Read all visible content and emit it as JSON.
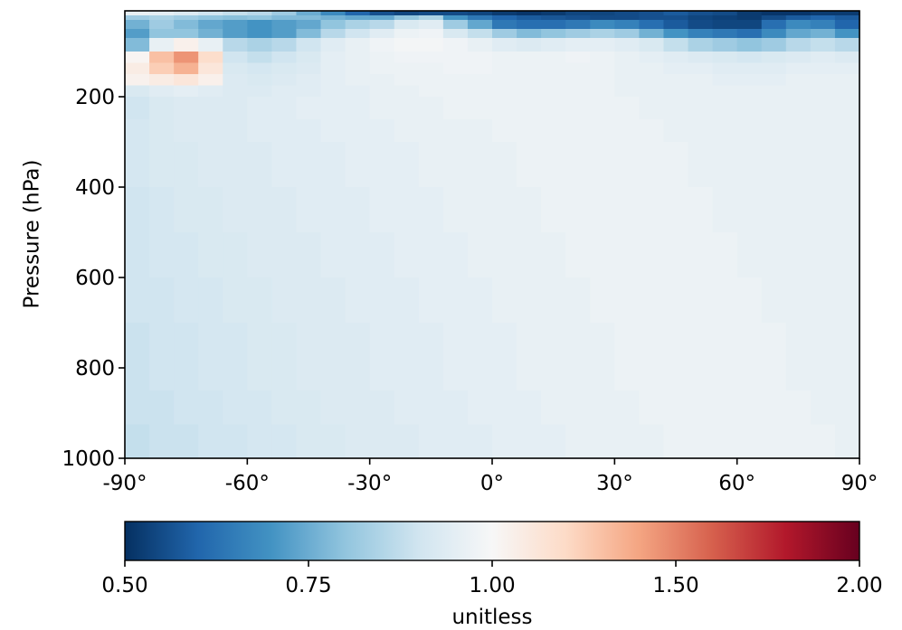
{
  "chart_data": {
    "type": "heatmap",
    "title": "",
    "xlabel": "",
    "ylabel": "Pressure (hPa)",
    "x_range": [
      -90,
      90
    ],
    "y_range": [
      1000,
      10
    ],
    "y_inverted": true,
    "x_ticks": [
      -90,
      -60,
      -30,
      0,
      30,
      60,
      90
    ],
    "x_tick_labels": [
      "-90°",
      "-60°",
      "-30°",
      "0°",
      "30°",
      "60°",
      "90°"
    ],
    "y_ticks": [
      200,
      400,
      600,
      800,
      1000
    ],
    "y_tick_labels": [
      "200",
      "400",
      "600",
      "800",
      "1000"
    ],
    "colorbar": {
      "label": "unitless",
      "colormap": "RdBu_r",
      "range": [
        0.5,
        2.0
      ],
      "ticks": [
        0.5,
        0.75,
        1.0,
        1.5,
        2.0
      ],
      "tick_labels": [
        "0.50",
        "0.75",
        "1.00",
        "1.50",
        "2.00"
      ]
    },
    "lat_edges": [
      -90,
      -84,
      -78,
      -72,
      -66,
      -60,
      -54,
      -48,
      -42,
      -36,
      -30,
      -24,
      -18,
      -12,
      -6,
      0,
      6,
      12,
      18,
      24,
      30,
      36,
      42,
      48,
      54,
      60,
      66,
      72,
      78,
      84,
      90
    ],
    "pressure_edges": [
      10,
      20,
      30,
      50,
      70,
      100,
      125,
      150,
      175,
      200,
      250,
      300,
      400,
      500,
      600,
      700,
      850,
      925,
      1000
    ],
    "values": [
      [
        0.96,
        0.95,
        0.93,
        0.9,
        0.88,
        0.86,
        0.82,
        0.75,
        0.68,
        0.6,
        0.56,
        0.54,
        0.55,
        0.55,
        0.54,
        0.52,
        0.51,
        0.52,
        0.54,
        0.54,
        0.55,
        0.56,
        0.58,
        0.56,
        0.55,
        0.52,
        0.51,
        0.51,
        0.52,
        0.52
      ],
      [
        0.82,
        0.84,
        0.82,
        0.8,
        0.79,
        0.8,
        0.78,
        0.78,
        0.76,
        0.74,
        0.74,
        0.8,
        0.84,
        0.7,
        0.64,
        0.6,
        0.58,
        0.57,
        0.56,
        0.55,
        0.55,
        0.56,
        0.56,
        0.54,
        0.53,
        0.52,
        0.55,
        0.58,
        0.6,
        0.58
      ],
      [
        0.76,
        0.82,
        0.78,
        0.74,
        0.72,
        0.7,
        0.72,
        0.74,
        0.8,
        0.84,
        0.86,
        0.92,
        0.94,
        0.82,
        0.74,
        0.64,
        0.62,
        0.62,
        0.64,
        0.68,
        0.66,
        0.62,
        0.58,
        0.55,
        0.54,
        0.54,
        0.62,
        0.68,
        0.66,
        0.6
      ],
      [
        0.72,
        0.8,
        0.8,
        0.76,
        0.72,
        0.7,
        0.72,
        0.78,
        0.86,
        0.9,
        0.94,
        0.97,
        0.98,
        0.92,
        0.88,
        0.82,
        0.78,
        0.8,
        0.82,
        0.84,
        0.82,
        0.76,
        0.7,
        0.66,
        0.64,
        0.62,
        0.68,
        0.74,
        0.76,
        0.7
      ],
      [
        0.78,
        0.96,
        1.05,
        0.96,
        0.86,
        0.84,
        0.86,
        0.9,
        0.94,
        0.96,
        0.98,
        0.99,
        0.99,
        0.98,
        0.96,
        0.94,
        0.93,
        0.94,
        0.95,
        0.95,
        0.94,
        0.92,
        0.88,
        0.84,
        0.82,
        0.8,
        0.82,
        0.86,
        0.88,
        0.86
      ],
      [
        1.02,
        1.3,
        1.45,
        1.18,
        0.9,
        0.88,
        0.9,
        0.92,
        0.95,
        0.96,
        0.97,
        0.98,
        0.98,
        0.98,
        0.98,
        0.97,
        0.97,
        0.97,
        0.98,
        0.97,
        0.96,
        0.95,
        0.94,
        0.93,
        0.92,
        0.91,
        0.92,
        0.93,
        0.94,
        0.93
      ],
      [
        1.08,
        1.25,
        1.35,
        1.12,
        0.92,
        0.91,
        0.92,
        0.93,
        0.95,
        0.96,
        0.97,
        0.97,
        0.97,
        0.98,
        0.98,
        0.97,
        0.97,
        0.97,
        0.97,
        0.97,
        0.96,
        0.96,
        0.95,
        0.95,
        0.94,
        0.94,
        0.94,
        0.95,
        0.95,
        0.95
      ],
      [
        1.04,
        1.08,
        1.12,
        1.05,
        0.93,
        0.92,
        0.93,
        0.94,
        0.95,
        0.96,
        0.96,
        0.97,
        0.97,
        0.97,
        0.97,
        0.97,
        0.97,
        0.97,
        0.97,
        0.97,
        0.96,
        0.96,
        0.96,
        0.96,
        0.95,
        0.95,
        0.95,
        0.96,
        0.96,
        0.96
      ],
      [
        0.92,
        0.94,
        0.95,
        0.94,
        0.93,
        0.93,
        0.94,
        0.94,
        0.95,
        0.95,
        0.96,
        0.96,
        0.97,
        0.97,
        0.97,
        0.97,
        0.97,
        0.97,
        0.97,
        0.97,
        0.96,
        0.96,
        0.96,
        0.96,
        0.96,
        0.96,
        0.96,
        0.96,
        0.96,
        0.96
      ],
      [
        0.9,
        0.92,
        0.93,
        0.93,
        0.93,
        0.94,
        0.94,
        0.95,
        0.95,
        0.95,
        0.96,
        0.96,
        0.96,
        0.97,
        0.97,
        0.97,
        0.97,
        0.97,
        0.97,
        0.97,
        0.97,
        0.96,
        0.96,
        0.96,
        0.96,
        0.96,
        0.96,
        0.96,
        0.96,
        0.96
      ],
      [
        0.91,
        0.92,
        0.93,
        0.93,
        0.93,
        0.94,
        0.94,
        0.94,
        0.95,
        0.95,
        0.95,
        0.96,
        0.96,
        0.96,
        0.96,
        0.97,
        0.97,
        0.97,
        0.97,
        0.97,
        0.97,
        0.97,
        0.96,
        0.96,
        0.96,
        0.96,
        0.96,
        0.96,
        0.96,
        0.96
      ],
      [
        0.91,
        0.92,
        0.92,
        0.93,
        0.93,
        0.93,
        0.94,
        0.94,
        0.94,
        0.95,
        0.95,
        0.95,
        0.96,
        0.96,
        0.96,
        0.96,
        0.97,
        0.97,
        0.97,
        0.97,
        0.97,
        0.97,
        0.97,
        0.96,
        0.96,
        0.96,
        0.96,
        0.96,
        0.96,
        0.96
      ],
      [
        0.9,
        0.91,
        0.92,
        0.92,
        0.93,
        0.93,
        0.93,
        0.94,
        0.94,
        0.94,
        0.95,
        0.95,
        0.95,
        0.96,
        0.96,
        0.96,
        0.96,
        0.97,
        0.97,
        0.97,
        0.97,
        0.97,
        0.97,
        0.97,
        0.96,
        0.96,
        0.96,
        0.96,
        0.96,
        0.96
      ],
      [
        0.9,
        0.91,
        0.91,
        0.92,
        0.92,
        0.93,
        0.93,
        0.93,
        0.94,
        0.94,
        0.94,
        0.95,
        0.95,
        0.95,
        0.96,
        0.96,
        0.96,
        0.96,
        0.97,
        0.97,
        0.97,
        0.97,
        0.97,
        0.97,
        0.97,
        0.96,
        0.96,
        0.96,
        0.96,
        0.96
      ],
      [
        0.9,
        0.9,
        0.91,
        0.91,
        0.92,
        0.92,
        0.93,
        0.93,
        0.93,
        0.94,
        0.94,
        0.94,
        0.95,
        0.95,
        0.95,
        0.96,
        0.96,
        0.96,
        0.96,
        0.97,
        0.97,
        0.97,
        0.97,
        0.97,
        0.97,
        0.97,
        0.96,
        0.96,
        0.96,
        0.96
      ],
      [
        0.89,
        0.9,
        0.9,
        0.91,
        0.91,
        0.92,
        0.92,
        0.93,
        0.93,
        0.93,
        0.94,
        0.94,
        0.94,
        0.95,
        0.95,
        0.95,
        0.96,
        0.96,
        0.96,
        0.96,
        0.97,
        0.97,
        0.97,
        0.97,
        0.97,
        0.97,
        0.97,
        0.96,
        0.96,
        0.96
      ],
      [
        0.89,
        0.89,
        0.9,
        0.9,
        0.91,
        0.91,
        0.92,
        0.92,
        0.93,
        0.93,
        0.93,
        0.94,
        0.94,
        0.94,
        0.95,
        0.95,
        0.95,
        0.96,
        0.96,
        0.96,
        0.96,
        0.97,
        0.97,
        0.97,
        0.97,
        0.97,
        0.97,
        0.97,
        0.96,
        0.96
      ],
      [
        0.88,
        0.89,
        0.89,
        0.9,
        0.9,
        0.91,
        0.91,
        0.92,
        0.92,
        0.93,
        0.93,
        0.93,
        0.94,
        0.94,
        0.94,
        0.95,
        0.95,
        0.95,
        0.96,
        0.96,
        0.96,
        0.96,
        0.97,
        0.97,
        0.97,
        0.97,
        0.97,
        0.97,
        0.97,
        0.96
      ]
    ]
  }
}
